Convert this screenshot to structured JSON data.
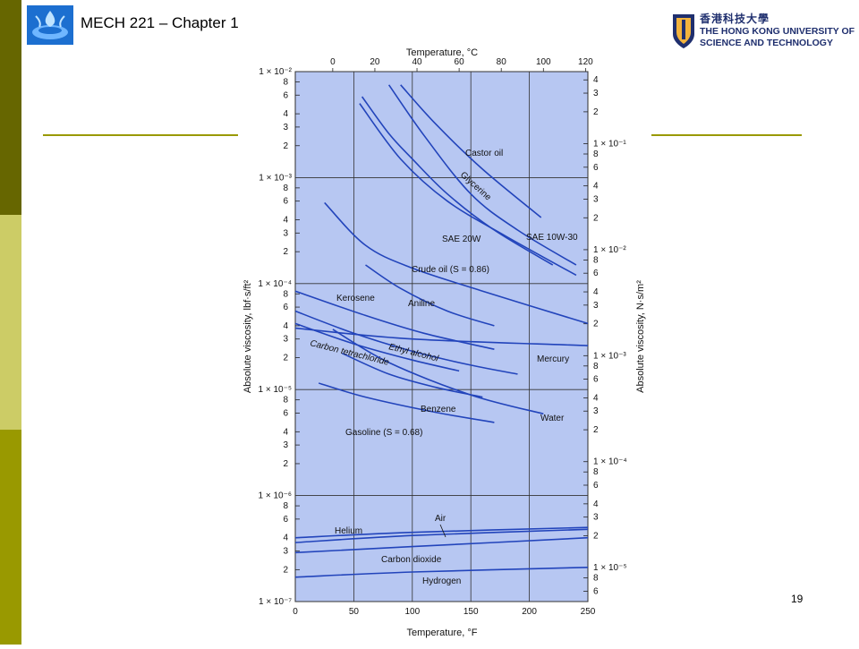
{
  "slide": {
    "title": "MECH 221 – Chapter 1",
    "page_number": "19",
    "logo_left_icon": "university-water-emblem-icon",
    "hkust_chinese": "香港科技大學",
    "hkust_line1": "THE HONG KONG UNIVERSITY OF",
    "hkust_line2": "SCIENCE AND TECHNOLOGY",
    "colors": {
      "bar_dark": "#666600",
      "bar_light": "#cccc66",
      "bar_mid": "#999900",
      "rule": "#999900",
      "plot_bg": "#b7c7f2",
      "curve": "#2244bb"
    }
  },
  "chart_data": {
    "type": "line",
    "log_y": true,
    "xlabel_bottom": "Temperature, °F",
    "xlabel_top": "Temperature, °C",
    "ylabel_left": "Absolute viscosity, lbf·s/ft²",
    "ylabel_right": "Absolute viscosity, N·s/m²",
    "xlim": [
      0,
      250
    ],
    "ylim": [
      1e-07,
      0.01
    ],
    "x_ticks_bottom": [
      0,
      50,
      100,
      150,
      200,
      250
    ],
    "x_ticks_top": [
      0,
      20,
      40,
      60,
      80,
      100,
      120
    ],
    "y_decade_labels_left": [
      "1 × 10⁻²",
      "1 × 10⁻³",
      "1 × 10⁻⁴",
      "1 × 10⁻⁵",
      "1 × 10⁻⁶",
      "1 × 10⁻⁷"
    ],
    "y_minor_labels": [
      "8",
      "6",
      "4",
      "3",
      "2"
    ],
    "y_decade_labels_right": [
      "1 × 10⁻¹",
      "1 × 10⁻²",
      "1 × 10⁻³",
      "1 × 10⁻⁴",
      "1 × 10⁻⁵"
    ],
    "series": [
      {
        "name": "Castor oil",
        "points": [
          [
            90,
            0.0075
          ],
          [
            120,
            0.0032
          ],
          [
            160,
            0.0012
          ],
          [
            210,
            0.00042
          ]
        ]
      },
      {
        "name": "Glycerine",
        "points": [
          [
            80,
            0.0075
          ],
          [
            110,
            0.0025
          ],
          [
            150,
            0.0007
          ],
          [
            190,
            0.00032
          ],
          [
            240,
            0.00015
          ]
        ]
      },
      {
        "name": "SAE 10W-30",
        "points": [
          [
            55,
            0.005
          ],
          [
            90,
            0.0015
          ],
          [
            130,
            0.0006
          ],
          [
            180,
            0.00028
          ],
          [
            240,
            0.00012
          ]
        ]
      },
      {
        "name": "SAE 20W",
        "points": [
          [
            57,
            0.0058
          ],
          [
            80,
            0.0026
          ],
          [
            100,
            0.0015
          ],
          [
            130,
            0.0007
          ],
          [
            170,
            0.00032
          ],
          [
            220,
            0.00015
          ]
        ]
      },
      {
        "name": "Crude oil (S = 0.86)",
        "points": [
          [
            25,
            0.00058
          ],
          [
            60,
            0.00023
          ],
          [
            100,
            0.00014
          ],
          [
            160,
            8.5e-05
          ],
          [
            250,
            4.2e-05
          ]
        ]
      },
      {
        "name": "Kerosene",
        "points": [
          [
            0,
            8.5e-05
          ],
          [
            60,
            5e-05
          ],
          [
            110,
            3.4e-05
          ],
          [
            170,
            2.4e-05
          ]
        ]
      },
      {
        "name": "Aniline",
        "points": [
          [
            60,
            0.00015
          ],
          [
            90,
            9e-05
          ],
          [
            130,
            5.5e-05
          ],
          [
            170,
            4e-05
          ]
        ]
      },
      {
        "name": "Mercury",
        "points": [
          [
            0,
            3.8e-05
          ],
          [
            100,
            3e-05
          ],
          [
            250,
            2.6e-05
          ]
        ]
      },
      {
        "name": "Ethyl alcohol",
        "points": [
          [
            0,
            5.5e-05
          ],
          [
            50,
            3.4e-05
          ],
          [
            100,
            2.3e-05
          ],
          [
            150,
            1.7e-05
          ],
          [
            190,
            1.4e-05
          ]
        ]
      },
      {
        "name": "Carbon tetrachloride",
        "points": [
          [
            0,
            4.2e-05
          ],
          [
            50,
            2.7e-05
          ],
          [
            100,
            1.9e-05
          ],
          [
            140,
            1.5e-05
          ]
        ]
      },
      {
        "name": "Water",
        "points": [
          [
            32,
            3.7e-05
          ],
          [
            80,
            1.8e-05
          ],
          [
            150,
            8.9e-06
          ],
          [
            212,
            5.9e-06
          ]
        ]
      },
      {
        "name": "Benzene",
        "points": [
          [
            40,
            2.2e-05
          ],
          [
            80,
            1.4e-05
          ],
          [
            120,
            1.05e-05
          ],
          [
            160,
            8.5e-06
          ]
        ]
      },
      {
        "name": "Gasoline (S = 0.68)",
        "points": [
          [
            20,
            1.15e-05
          ],
          [
            60,
            8.5e-06
          ],
          [
            120,
            6.1e-06
          ],
          [
            170,
            4.9e-06
          ]
        ]
      },
      {
        "name": "Air",
        "points": [
          [
            0,
            3.6e-07
          ],
          [
            100,
            4.2e-07
          ],
          [
            250,
            4.8e-07
          ]
        ]
      },
      {
        "name": "Helium",
        "points": [
          [
            0,
            4e-07
          ],
          [
            100,
            4.5e-07
          ],
          [
            250,
            5e-07
          ]
        ]
      },
      {
        "name": "Carbon dioxide",
        "points": [
          [
            0,
            2.9e-07
          ],
          [
            100,
            3.3e-07
          ],
          [
            250,
            4e-07
          ]
        ]
      },
      {
        "name": "Hydrogen",
        "points": [
          [
            0,
            1.7e-07
          ],
          [
            100,
            1.9e-07
          ],
          [
            250,
            2.1e-07
          ]
        ]
      }
    ]
  }
}
